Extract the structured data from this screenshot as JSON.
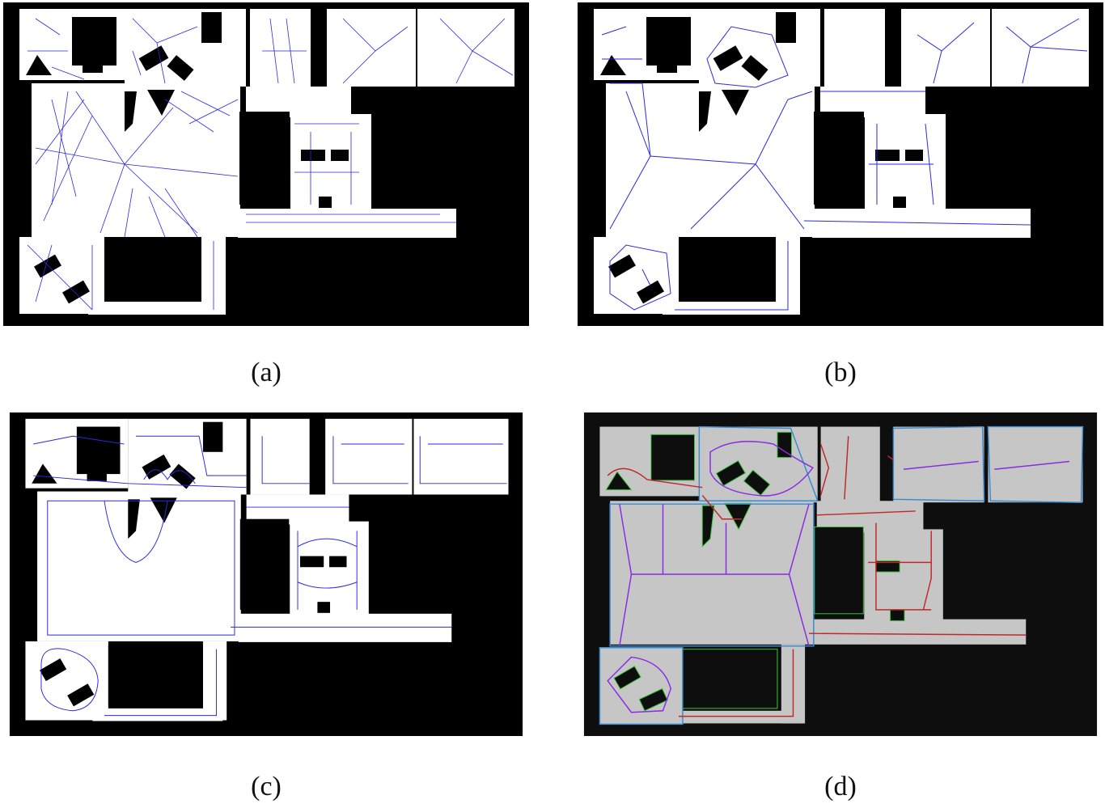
{
  "panels": [
    {
      "id": "a",
      "caption": "(a)",
      "style": "voronoi-dense",
      "line_color": "#2a2ae0"
    },
    {
      "id": "b",
      "caption": "(b)",
      "style": "voronoi-pruned",
      "line_color": "#2a2ae0"
    },
    {
      "id": "c",
      "caption": "(c)",
      "style": "voronoi-wall",
      "line_color": "#2a2ae0"
    },
    {
      "id": "d",
      "caption": "(d)",
      "style": "segmented",
      "colors": {
        "background": "#0e0e0e",
        "free": "#c6c6c6",
        "room_border": "#3a8bd0",
        "room_skeleton": "#8a2be2",
        "corridor": "#c0282a",
        "obstacle_outline": "#39c939"
      }
    }
  ]
}
